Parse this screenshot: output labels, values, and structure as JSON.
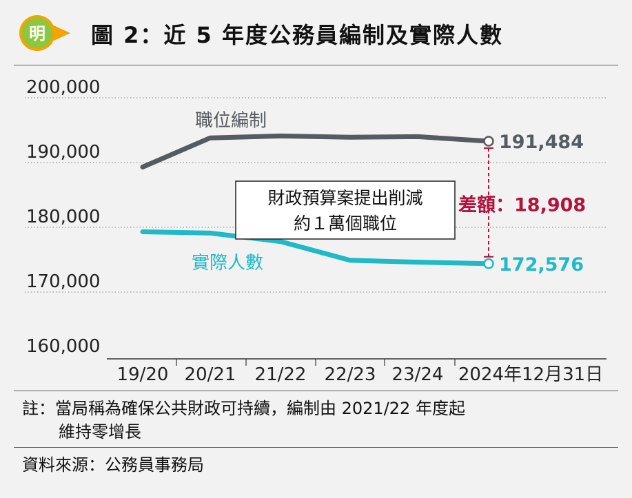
{
  "header": {
    "logo_text": "明",
    "title": "圖 2：近 5 年度公務員編制及實際人數"
  },
  "chart_data": {
    "type": "line",
    "categories": [
      "19/20",
      "20/21",
      "21/22",
      "22/23",
      "23/24",
      "2024年12月31日"
    ],
    "series": [
      {
        "name": "職位編制",
        "values": [
          187500,
          192000,
          192300,
          192100,
          192200,
          191484
        ],
        "color": "#555b61"
      },
      {
        "name": "實際人數",
        "values": [
          177500,
          177300,
          176000,
          173100,
          172800,
          172576
        ],
        "color": "#1fb9c8"
      }
    ],
    "ylim": [
      160000,
      200000
    ],
    "yticks": [
      "200,000",
      "190,000",
      "180,000",
      "170,000",
      "160,000"
    ],
    "ytick_values": [
      200000,
      190000,
      180000,
      170000,
      160000
    ],
    "grid": "dotted horizontal",
    "end_labels": [
      "191,484",
      "172,576"
    ],
    "difference_label": "差額：18,908",
    "difference_color": "#b3123d",
    "annotation_lines": [
      "財政預算案提出削減",
      "約１萬個職位"
    ]
  },
  "notes": {
    "note_line1": "註：當局稱為確保公共財政可持續，編制由 2021/22 年度起",
    "note_line2": "維持零增長",
    "source": "資料來源：公務員事務局"
  }
}
